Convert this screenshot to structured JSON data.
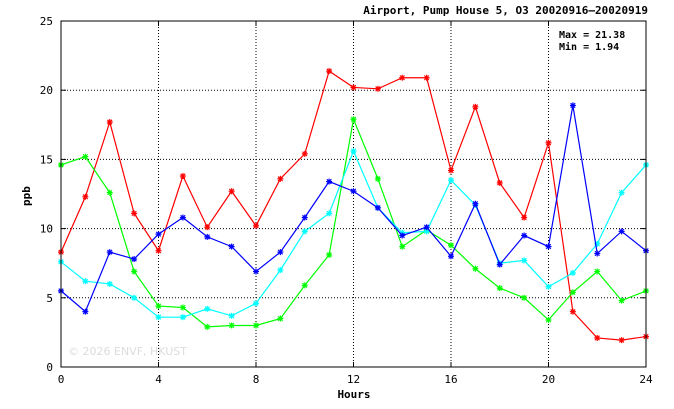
{
  "chart_data": {
    "type": "line",
    "title": "Airport, Pump House 5, O3 20020916–20020919",
    "xlabel": "Hours",
    "ylabel": "ppb",
    "xlim": [
      0,
      24
    ],
    "ylim": [
      0,
      25
    ],
    "xticks": [
      0,
      4,
      8,
      12,
      16,
      20,
      24
    ],
    "yticks": [
      0,
      5,
      10,
      15,
      20,
      25
    ],
    "grid": true,
    "stats": {
      "max": "Max = 21.38",
      "min": "Min =  1.94"
    },
    "watermark": "© 2026  ENVF, HKUST",
    "x": [
      0,
      1,
      2,
      3,
      4,
      5,
      6,
      7,
      8,
      9,
      10,
      11,
      12,
      13,
      14,
      15,
      16,
      17,
      18,
      19,
      20,
      21,
      22,
      23,
      24
    ],
    "series": [
      {
        "color": "#ff0000",
        "values": [
          8.3,
          12.3,
          17.7,
          11.1,
          8.4,
          13.8,
          10.1,
          12.7,
          10.2,
          13.6,
          15.4,
          21.38,
          20.2,
          20.1,
          20.9,
          20.9,
          14.2,
          18.8,
          13.3,
          10.8,
          16.2,
          4.0,
          2.1,
          1.94,
          2.2
        ]
      },
      {
        "color": "#00ff00",
        "values": [
          14.6,
          15.2,
          12.6,
          6.9,
          4.4,
          4.3,
          2.9,
          3.0,
          3.0,
          3.5,
          5.9,
          8.1,
          17.9,
          13.6,
          8.7,
          9.9,
          8.8,
          7.1,
          5.7,
          5.0,
          3.4,
          5.4,
          6.9,
          4.8,
          5.5
        ]
      },
      {
        "color": "#00ffff",
        "values": [
          7.6,
          6.2,
          6.0,
          5.0,
          3.6,
          3.6,
          4.2,
          3.7,
          4.6,
          7.0,
          9.8,
          11.1,
          15.6,
          11.5,
          9.7,
          9.8,
          13.5,
          11.7,
          7.5,
          7.7,
          5.8,
          6.8,
          8.9,
          12.6,
          14.6
        ]
      },
      {
        "color": "#0000ff",
        "values": [
          5.5,
          4.0,
          8.3,
          7.8,
          9.6,
          10.8,
          9.4,
          8.7,
          6.9,
          8.3,
          10.8,
          13.4,
          12.7,
          11.5,
          9.5,
          10.1,
          8.0,
          11.8,
          7.4,
          9.5,
          8.7,
          18.9,
          8.2,
          9.8,
          8.4
        ]
      }
    ]
  }
}
